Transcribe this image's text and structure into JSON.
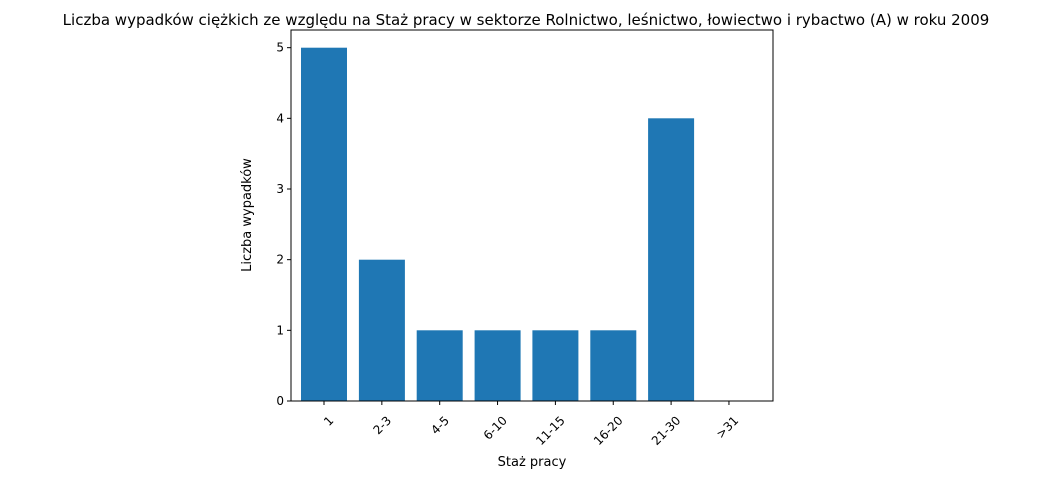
{
  "chart_data": {
    "type": "bar",
    "title": "Liczba wypadków ciężkich ze względu na Staż pracy w sektorze Rolnictwo, leśnictwo, łowiectwo i rybactwo (A) w roku 2009",
    "xlabel": "Staż pracy",
    "ylabel": "Liczba wypadków",
    "categories": [
      "1",
      "2-3",
      "4-5",
      "6-10",
      "11-15",
      "16-20",
      "21-30",
      ">31"
    ],
    "values": [
      5,
      2,
      1,
      1,
      1,
      1,
      4,
      0
    ],
    "ylim": [
      0,
      5.25
    ],
    "yticks": [
      "0",
      "1",
      "2",
      "3",
      "4",
      "5"
    ],
    "grid": false,
    "legend": "none",
    "bar_color": "#1f77b4"
  }
}
